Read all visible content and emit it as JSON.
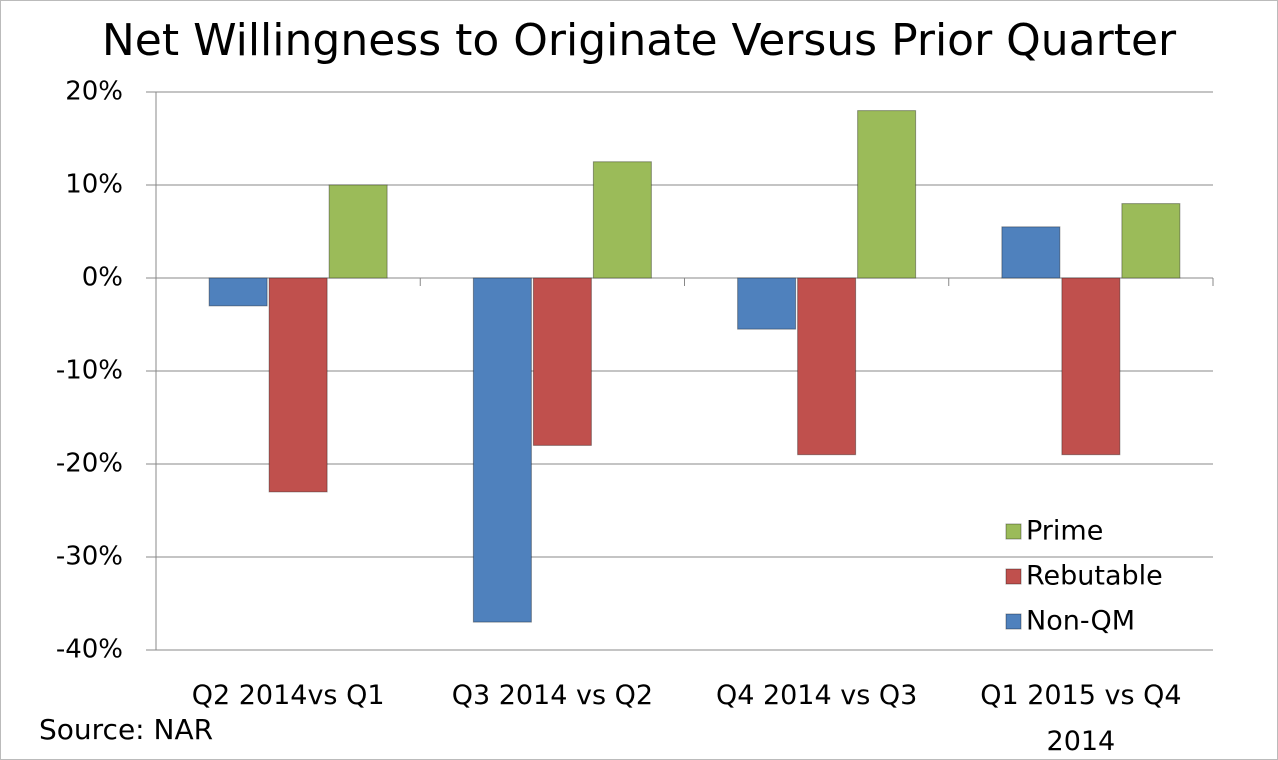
{
  "chart_data": {
    "type": "bar",
    "title": "Net Willingness to Originate Versus Prior Quarter",
    "source": "Source: NAR",
    "categories": [
      "Q2 2014vs Q1",
      "Q3 2014 vs Q2",
      "Q4 2014 vs Q3",
      "Q1 2015 vs Q4 2014"
    ],
    "series": [
      {
        "name": "Non-QM",
        "color": "#4f81bd",
        "values": [
          -3,
          -37,
          -5.5,
          5.5
        ]
      },
      {
        "name": "Rebutable",
        "color": "#c0504d",
        "values": [
          -23,
          -18,
          -19,
          -19
        ]
      },
      {
        "name": "Prime",
        "color": "#9bbb59",
        "values": [
          10,
          12.5,
          18,
          8
        ]
      }
    ],
    "ylim": [
      -40,
      20
    ],
    "yticks": [
      {
        "value": -40,
        "label": "-40%"
      },
      {
        "value": -30,
        "label": "-30%"
      },
      {
        "value": -20,
        "label": "-20%"
      },
      {
        "value": -10,
        "label": "-10%"
      },
      {
        "value": 0,
        "label": "0%"
      },
      {
        "value": 10,
        "label": "10%"
      },
      {
        "value": 20,
        "label": "20%"
      }
    ],
    "grid": true,
    "legend_position": "lower right"
  }
}
